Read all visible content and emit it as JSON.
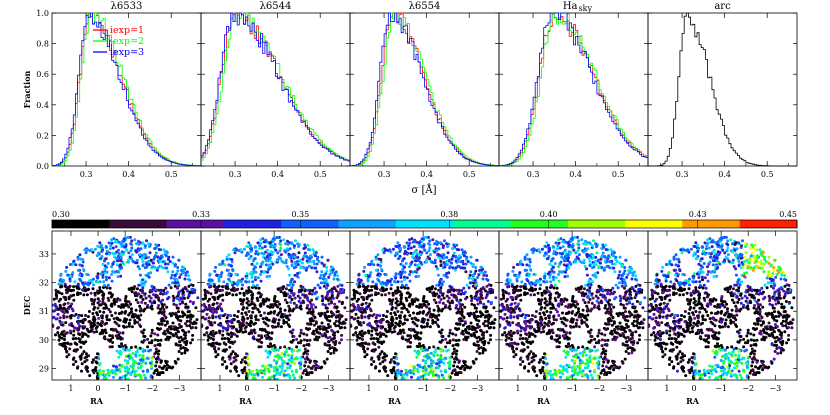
{
  "chart_data": [
    {
      "type": "line",
      "panels": [
        {
          "title": "λ6533",
          "peak": 0.31,
          "width": 0.024,
          "tail": 0.62,
          "series": [
            "iexp=1",
            "iexp=2",
            "iexp=3"
          ]
        },
        {
          "title": "λ6544",
          "peak": 0.3,
          "width": 0.032,
          "tail": 0.7,
          "series": [
            "iexp=1",
            "iexp=2",
            "iexp=3"
          ]
        },
        {
          "title": "λ6554",
          "peak": 0.32,
          "width": 0.026,
          "tail": 0.55,
          "series": [
            "iexp=1",
            "iexp=2",
            "iexp=3"
          ]
        },
        {
          "title": "Ha",
          "title_sub": "sky",
          "peak": 0.35,
          "width": 0.035,
          "tail": 0.5,
          "series": [
            "iexp=1",
            "iexp=2",
            "iexp=3"
          ]
        },
        {
          "title": "arc",
          "peak": 0.31,
          "width": 0.018,
          "tail": 0.6,
          "series": [
            "arc"
          ]
        }
      ],
      "xlim": [
        0.22,
        0.57
      ],
      "ylim": [
        0.0,
        1.0
      ],
      "xticks": [
        0.3,
        0.4,
        0.5
      ],
      "xtick_labels": [
        "0.3",
        "0.4",
        "0.5"
      ],
      "yticks": [
        0.0,
        0.2,
        0.4,
        0.6,
        0.8,
        1.0
      ],
      "ytick_labels": [
        "0.0",
        "0.2",
        "0.4",
        "0.6",
        "0.8",
        "1.0"
      ],
      "ylabel": "Fraction",
      "xlabel": "σ [Å]",
      "legend": [
        {
          "name": "iexp=1",
          "color": "#ff0000"
        },
        {
          "name": "iexp=2",
          "color": "#00ff00"
        },
        {
          "name": "iexp=3",
          "color": "#0000ff"
        }
      ],
      "legend_position": "top-left of first panel",
      "arc_color": "#000000"
    },
    {
      "type": "scatter",
      "panels": [
        "λ6533",
        "λ6544",
        "λ6554",
        "Ha_sky",
        "arc"
      ],
      "xlim": [
        1.7,
        -3.8
      ],
      "ylim": [
        28.6,
        33.8
      ],
      "xticks": [
        1,
        0,
        -1,
        -2,
        -3
      ],
      "xtick_labels": [
        "1",
        "0",
        "−1",
        "−2",
        "−3"
      ],
      "yticks": [
        29,
        30,
        31,
        32,
        33
      ],
      "ytick_labels": [
        "29",
        "30",
        "31",
        "32",
        "33"
      ],
      "xlabel": "RA",
      "ylabel": "DEC",
      "field_center": [
        -1.0,
        31.0
      ],
      "field_radius": 2.6
    }
  ],
  "colorbar": {
    "range": [
      0.3,
      0.45
    ],
    "ticks": [
      0.3,
      0.33,
      0.35,
      0.38,
      0.4,
      0.43,
      0.45
    ],
    "tick_labels": [
      "0.30",
      "0.33",
      "0.35",
      "0.38",
      "0.40",
      "0.43",
      "0.45"
    ],
    "colors": [
      "#000000",
      "#3a0a3a",
      "#5a10a0",
      "#2020e0",
      "#1060ff",
      "#10a0ff",
      "#00e0ff",
      "#00ff90",
      "#20ff20",
      "#a0ff00",
      "#ffff00",
      "#ff9900",
      "#ff2000"
    ]
  }
}
